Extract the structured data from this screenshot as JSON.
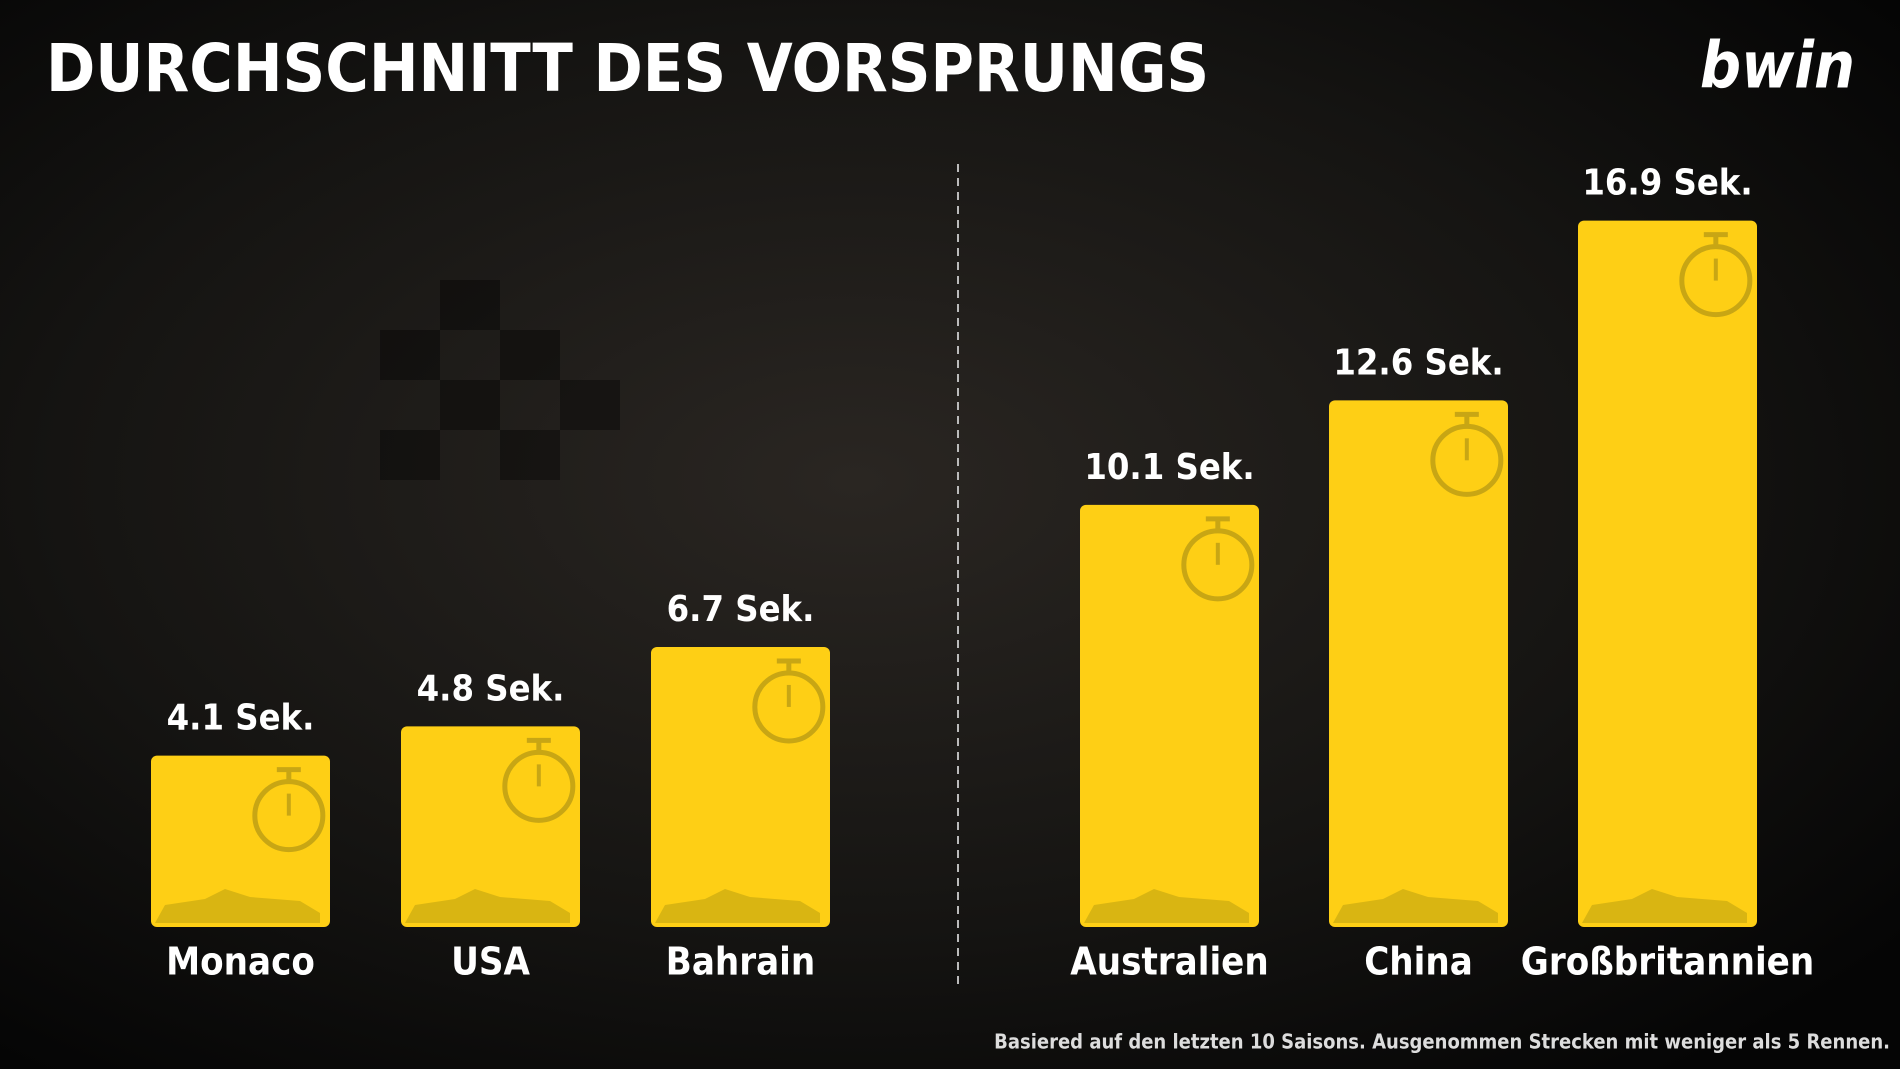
{
  "chart_data": {
    "type": "bar",
    "title": "DURCHSCHNITT DES VORSPRUNGS",
    "brand": "bwin",
    "footnote": "Basiered auf den letzten 10 Saisons. Ausgenommen Strecken mit weniger als 5 Rennen.",
    "categories": [
      "Monaco",
      "USA",
      "Bahrain",
      "Australien",
      "China",
      "Großbritannien"
    ],
    "values": [
      4.1,
      4.8,
      6.7,
      10.1,
      12.6,
      16.9
    ],
    "value_labels": [
      "4.1 Sek.",
      "4.8 Sek.",
      "6.7 Sek.",
      "10.1 Sek.",
      "12.6 Sek.",
      "16.9 Sek."
    ],
    "color": "#fecf15"
  }
}
